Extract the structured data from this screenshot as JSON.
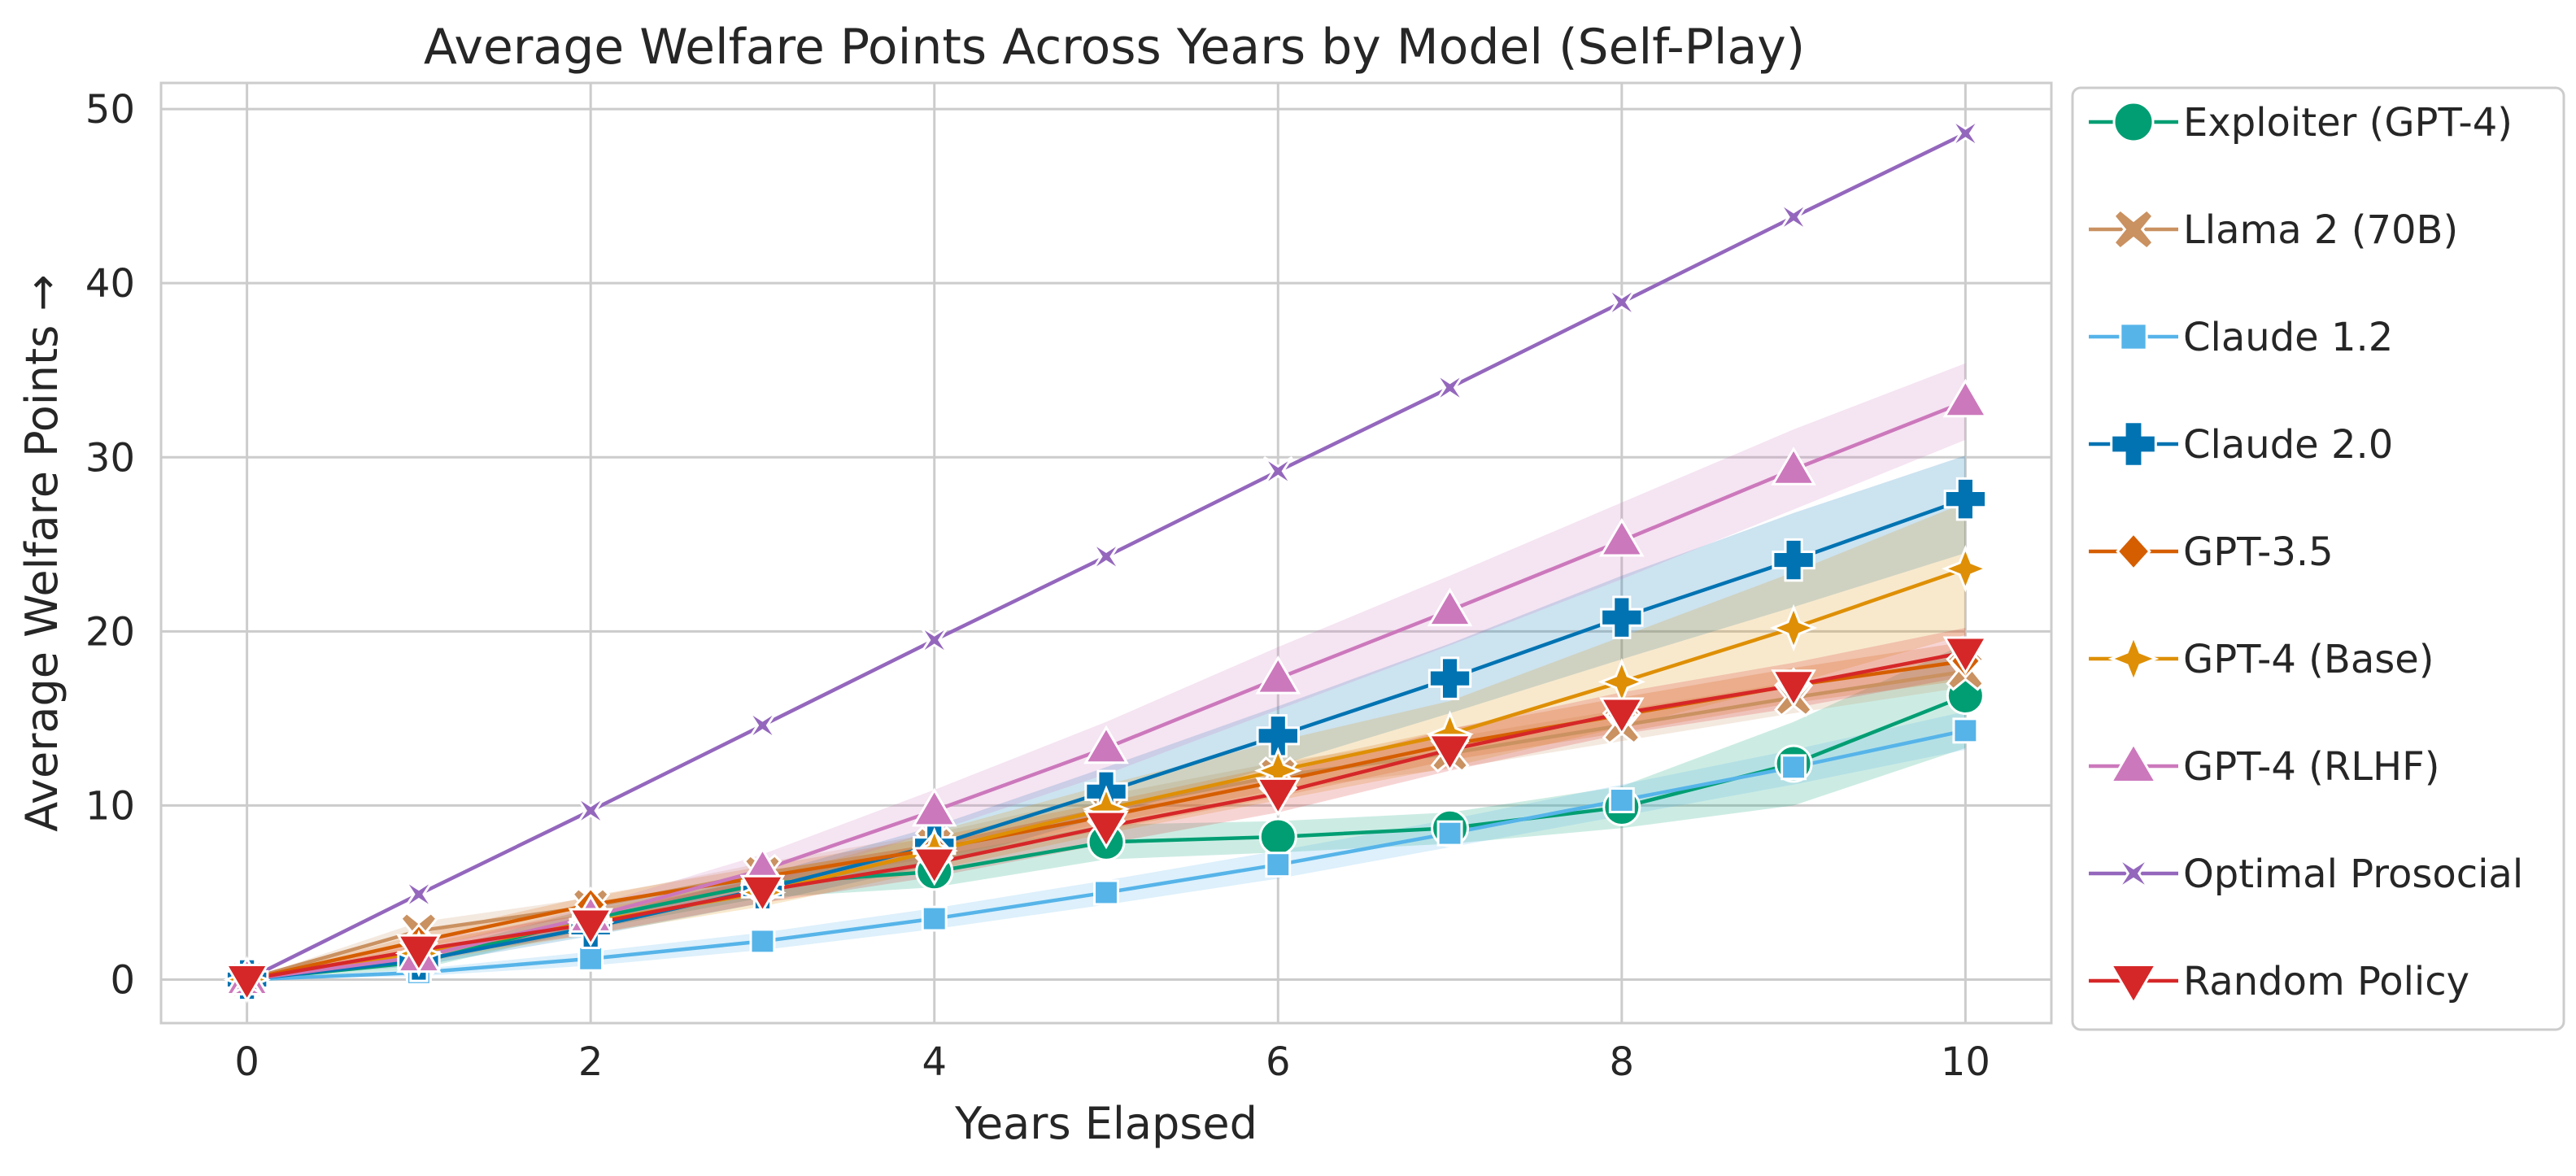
{
  "chart_data": {
    "type": "line",
    "title": "Average Welfare Points Across Years by Model (Self-Play)",
    "xlabel": "Years Elapsed",
    "ylabel": "Average Welfare Points →",
    "x": [
      0,
      1,
      2,
      3,
      4,
      5,
      6,
      7,
      8,
      9,
      10
    ],
    "xlim": [
      -0.5,
      10.5
    ],
    "ylim": [
      -2.5,
      51.5
    ],
    "xticks": [
      "0",
      "2",
      "4",
      "6",
      "8",
      "10"
    ],
    "xtick_values": [
      0,
      2,
      4,
      6,
      8,
      10
    ],
    "yticks": [
      "0",
      "10",
      "20",
      "30",
      "40",
      "50"
    ],
    "ytick_values": [
      0,
      10,
      20,
      30,
      40,
      50
    ],
    "grid": true,
    "legend_position": "outside-right",
    "series": [
      {
        "name": "Exploiter (GPT-4)",
        "color": "#029e73",
        "marker": "circle",
        "values": [
          0,
          1.0,
          3.5,
          5.5,
          6.2,
          7.9,
          8.2,
          8.7,
          9.9,
          12.4,
          16.3
        ],
        "band_lower": [
          0,
          0.6,
          2.9,
          4.7,
          5.3,
          6.9,
          7.3,
          7.8,
          8.7,
          10.0,
          13.3
        ],
        "band_upper": [
          0,
          1.4,
          4.1,
          6.3,
          7.1,
          8.9,
          9.1,
          9.6,
          11.1,
          14.8,
          19.3
        ]
      },
      {
        "name": "Llama 2 (70B)",
        "color": "#ca9161",
        "marker": "x",
        "values": [
          0,
          2.8,
          4.2,
          6.1,
          7.7,
          9.8,
          11.7,
          13.0,
          14.6,
          16.2,
          17.7
        ],
        "band_lower": [
          0,
          2.3,
          3.7,
          5.5,
          7.0,
          9.0,
          10.9,
          12.1,
          13.7,
          15.3,
          16.8
        ],
        "band_upper": [
          0,
          3.3,
          4.7,
          6.7,
          8.4,
          10.6,
          12.5,
          13.9,
          15.5,
          17.1,
          18.6
        ]
      },
      {
        "name": "Claude 1.2",
        "color": "#56b4e9",
        "marker": "square",
        "values": [
          0,
          0.4,
          1.2,
          2.2,
          3.5,
          5.0,
          6.6,
          8.4,
          10.3,
          12.2,
          14.3
        ],
        "band_lower": [
          0,
          0.2,
          0.8,
          1.7,
          2.9,
          4.3,
          5.8,
          7.6,
          9.4,
          11.2,
          13.2
        ],
        "band_upper": [
          0,
          0.6,
          1.6,
          2.7,
          4.1,
          5.7,
          7.4,
          9.2,
          11.2,
          13.2,
          15.4
        ]
      },
      {
        "name": "Claude 2.0",
        "color": "#0173b2",
        "marker": "plus",
        "values": [
          0,
          1.1,
          3.0,
          5.2,
          7.7,
          10.8,
          14.0,
          17.3,
          20.8,
          24.1,
          27.6
        ],
        "band_lower": [
          0,
          0.8,
          2.5,
          4.4,
          6.6,
          9.4,
          12.3,
          15.3,
          18.4,
          21.4,
          24.5
        ],
        "band_upper": [
          0,
          1.4,
          3.5,
          6.0,
          8.8,
          12.2,
          15.7,
          19.3,
          23.2,
          26.8,
          30.1
        ]
      },
      {
        "name": "GPT-3.5",
        "color": "#d55e00",
        "marker": "diamond",
        "values": [
          0,
          2.2,
          4.3,
          5.9,
          7.5,
          9.4,
          11.4,
          13.5,
          15.2,
          16.9,
          18.3
        ],
        "band_lower": [
          0,
          1.8,
          3.8,
          5.3,
          6.8,
          8.6,
          10.5,
          12.6,
          14.2,
          15.9,
          17.2
        ],
        "band_upper": [
          0,
          2.6,
          4.8,
          6.5,
          8.2,
          10.2,
          12.3,
          14.4,
          16.2,
          17.9,
          19.4
        ]
      },
      {
        "name": "GPT-4 (Base)",
        "color": "#de8f05",
        "marker": "star4",
        "values": [
          0,
          1.5,
          3.3,
          5.0,
          7.4,
          9.8,
          12.0,
          14.1,
          17.1,
          20.2,
          23.6
        ],
        "band_lower": [
          0,
          1.0,
          2.6,
          4.2,
          6.3,
          8.4,
          10.3,
          12.2,
          14.5,
          17.0,
          19.8
        ],
        "band_upper": [
          0,
          2.0,
          4.0,
          5.8,
          8.5,
          11.2,
          13.7,
          16.0,
          19.7,
          23.4,
          27.4
        ]
      },
      {
        "name": "GPT-4 (RLHF)",
        "color": "#cc78bc",
        "marker": "triangle-up",
        "values": [
          0,
          1.3,
          3.6,
          6.3,
          9.7,
          13.3,
          17.3,
          21.2,
          25.2,
          29.3,
          33.2
        ],
        "band_lower": [
          0,
          0.9,
          3.0,
          5.4,
          8.5,
          11.8,
          15.5,
          19.2,
          23.0,
          27.0,
          31.0
        ],
        "band_upper": [
          0,
          1.7,
          4.2,
          7.2,
          10.9,
          14.8,
          19.1,
          23.2,
          27.4,
          31.6,
          35.4
        ]
      },
      {
        "name": "Optimal Prosocial",
        "color": "#9467bd",
        "marker": "star-x",
        "values": [
          0,
          4.9,
          9.7,
          14.6,
          19.5,
          24.3,
          29.2,
          34.0,
          38.9,
          43.8,
          48.6
        ]
      },
      {
        "name": "Random Policy",
        "color": "#d62728",
        "marker": "triangle-down",
        "values": [
          0,
          1.7,
          3.2,
          5.1,
          6.7,
          8.8,
          10.7,
          13.2,
          15.3,
          16.9,
          18.8
        ],
        "band_lower": [
          0,
          1.2,
          2.6,
          4.4,
          5.9,
          7.8,
          9.6,
          12.0,
          14.1,
          15.6,
          17.4
        ],
        "band_upper": [
          0,
          2.2,
          3.8,
          5.8,
          7.5,
          9.8,
          11.8,
          14.4,
          16.5,
          18.2,
          20.2
        ]
      }
    ]
  }
}
